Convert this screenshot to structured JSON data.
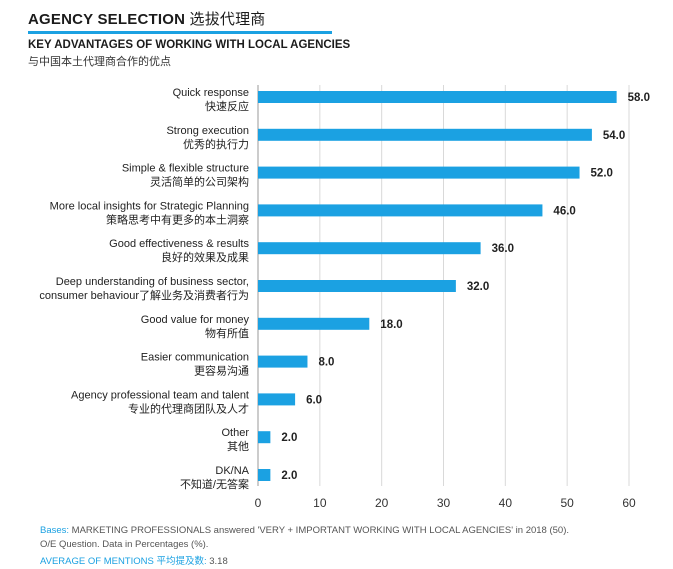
{
  "header": {
    "title_en": "AGENCY SELECTION",
    "title_zh": "选拔代理商"
  },
  "subtitle": {
    "en": "KEY ADVANTAGES OF WORKING WITH LOCAL AGENCIES",
    "zh": "与中国本土代理商合作的优点"
  },
  "colors": {
    "bar": "#1ba1e2",
    "grid": "#d9d9d9",
    "accent": "#1ba1e2"
  },
  "chart_data": {
    "type": "bar",
    "orientation": "horizontal",
    "categories": [
      [
        "Quick response",
        "快速反应"
      ],
      [
        "Strong execution",
        "优秀的执行力"
      ],
      [
        "Simple & flexible structure",
        "灵活简单的公司架构"
      ],
      [
        "More local insights for Strategic Planning",
        "策略思考中有更多的本土洞察"
      ],
      [
        "Good effectiveness & results",
        "良好的效果及成果"
      ],
      [
        "Deep understanding of business sector,",
        "consumer behaviour了解业务及消费者行为"
      ],
      [
        "Good value for money",
        "物有所值"
      ],
      [
        "Easier communication",
        "更容易沟通"
      ],
      [
        "Agency professional team  and talent",
        "专业的代理商团队及人才"
      ],
      [
        "Other",
        "其他"
      ],
      [
        "DK/NA",
        "不知道/无答案"
      ]
    ],
    "values": [
      58.0,
      54.0,
      52.0,
      46.0,
      36.0,
      32.0,
      18.0,
      8.0,
      6.0,
      2.0,
      2.0
    ],
    "value_labels": [
      "58.0",
      "54.0",
      "52.0",
      "46.0",
      "36.0",
      "32.0",
      "18.0",
      "8.0",
      "6.0",
      "2.0",
      "2.0"
    ],
    "xlim": [
      0,
      60
    ],
    "xticks": [
      "0",
      "10",
      "20",
      "30",
      "40",
      "50",
      "60"
    ],
    "grid": true
  },
  "footnote": {
    "bases_label": "Bases:",
    "bases_text": " MARKETING PROFESSIONALS answered 'VERY + IMPORTANT WORKING WITH LOCAL AGENCIES' in 2018 (50).",
    "question": "O/E Question. Data in Percentages (%).",
    "avg_label": "AVERAGE OF MENTIONS 平均提及数:",
    "avg_value": " 3.18"
  }
}
